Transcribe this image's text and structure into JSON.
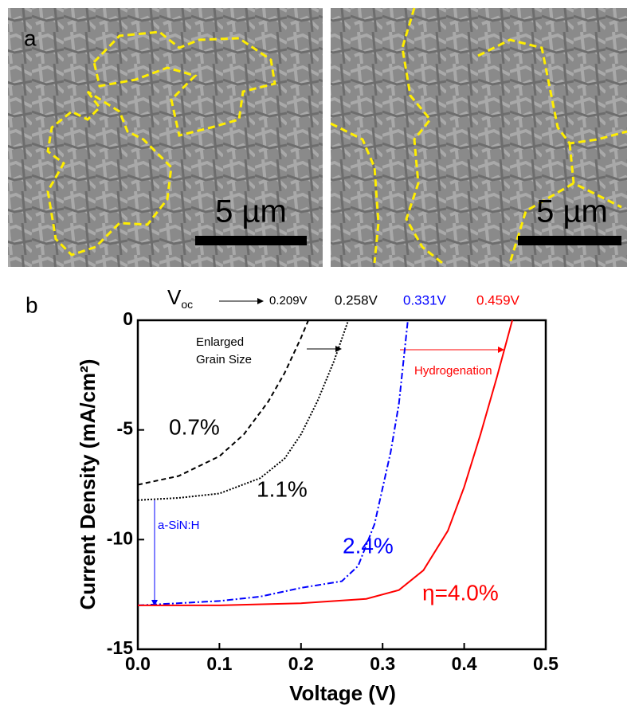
{
  "panels": {
    "a_label": "a",
    "scale_left": "5 µm",
    "scale_right": "5 µm"
  },
  "chart_data": {
    "type": "line",
    "panel_label": "b",
    "x_label": "Voltage (V)",
    "y_label": "Current Density (mA/cm²)",
    "xlim": [
      0,
      0.5
    ],
    "ylim": [
      -15,
      0
    ],
    "xticks": [
      {
        "value": 0,
        "label": "0.0"
      },
      0.1,
      0.2,
      0.3,
      0.4,
      0.5
    ],
    "yticks": [
      0,
      -5,
      -10,
      -15
    ],
    "voc_label": {
      "main": "V",
      "sub": "oc"
    },
    "voc_values": [
      "0.209V",
      "0.258V",
      "0.331V",
      "0.459V"
    ],
    "annotations": {
      "grain": [
        "Enlarged",
        "Grain Size"
      ],
      "hydro": "Hydrogenation",
      "sin": "a-SiN:H"
    },
    "series": [
      {
        "name": "0.7%",
        "color": "#000000",
        "linestyle": "dashed",
        "x": [
          0,
          0.05,
          0.1,
          0.13,
          0.16,
          0.18,
          0.2,
          0.209
        ],
        "values": [
          -7.5,
          -7.1,
          -6.2,
          -5.2,
          -3.7,
          -2.4,
          -0.8,
          0
        ]
      },
      {
        "name": "1.1%",
        "color": "#000000",
        "linestyle": "dotted",
        "x": [
          0,
          0.05,
          0.1,
          0.15,
          0.18,
          0.2,
          0.22,
          0.24,
          0.258
        ],
        "values": [
          -8.2,
          -8.1,
          -7.9,
          -7.2,
          -6.3,
          -5.2,
          -3.7,
          -1.9,
          0
        ]
      },
      {
        "name": "2.4%",
        "color": "#0000ff",
        "linestyle": "dashdot",
        "x": [
          0,
          0.1,
          0.15,
          0.2,
          0.25,
          0.27,
          0.29,
          0.31,
          0.32,
          0.331
        ],
        "values": [
          -13,
          -12.8,
          -12.6,
          -12.2,
          -11.9,
          -11.2,
          -9.3,
          -6,
          -3.8,
          0
        ]
      },
      {
        "name": "η=4.0%",
        "color": "#ff0000",
        "linestyle": "solid",
        "x": [
          0,
          0.1,
          0.2,
          0.28,
          0.32,
          0.35,
          0.38,
          0.4,
          0.42,
          0.44,
          0.459
        ],
        "values": [
          -13,
          -13,
          -12.9,
          -12.7,
          -12.3,
          -11.4,
          -9.6,
          -7.6,
          -5.2,
          -2.6,
          0
        ]
      }
    ]
  }
}
